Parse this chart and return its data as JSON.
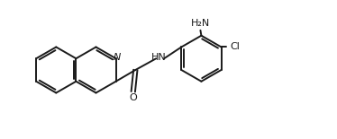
{
  "bg_color": "#ffffff",
  "line_color": "#1a1a1a",
  "text_color": "#1a1a1a",
  "lw": 1.4,
  "figsize": [
    3.74,
    1.55
  ],
  "dpi": 100,
  "xlim": [
    0,
    374
  ],
  "ylim": [
    0,
    155
  ]
}
